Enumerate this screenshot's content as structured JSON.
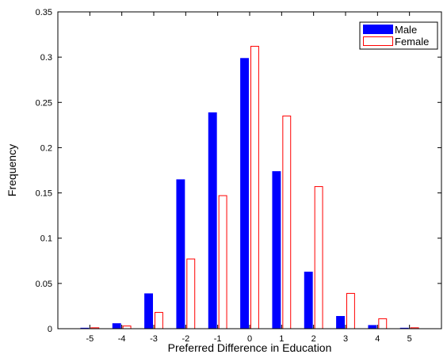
{
  "chart_data": {
    "type": "bar",
    "title": "",
    "xlabel": "Preferred Difference in Education",
    "ylabel": "Frequency",
    "categories": [
      "-5",
      "-4",
      "-3",
      "-2",
      "-1",
      "0",
      "1",
      "2",
      "3",
      "4",
      "5"
    ],
    "xlim": [
      -6,
      6
    ],
    "ylim": [
      0,
      0.35
    ],
    "yticks": [
      "0",
      "0.05",
      "0.1",
      "0.15",
      "0.2",
      "0.25",
      "0.3",
      "0.35"
    ],
    "grid": false,
    "legend_position": "top-right",
    "series": [
      {
        "name": "Male",
        "style": "filled",
        "color": "#0000ff",
        "values": [
          0.001,
          0.006,
          0.039,
          0.165,
          0.239,
          0.299,
          0.174,
          0.063,
          0.014,
          0.004,
          0.001
        ]
      },
      {
        "name": "Female",
        "style": "outline",
        "color": "#ff0000",
        "values": [
          0.001,
          0.003,
          0.018,
          0.077,
          0.147,
          0.312,
          0.235,
          0.157,
          0.039,
          0.011,
          0.001
        ]
      }
    ]
  }
}
